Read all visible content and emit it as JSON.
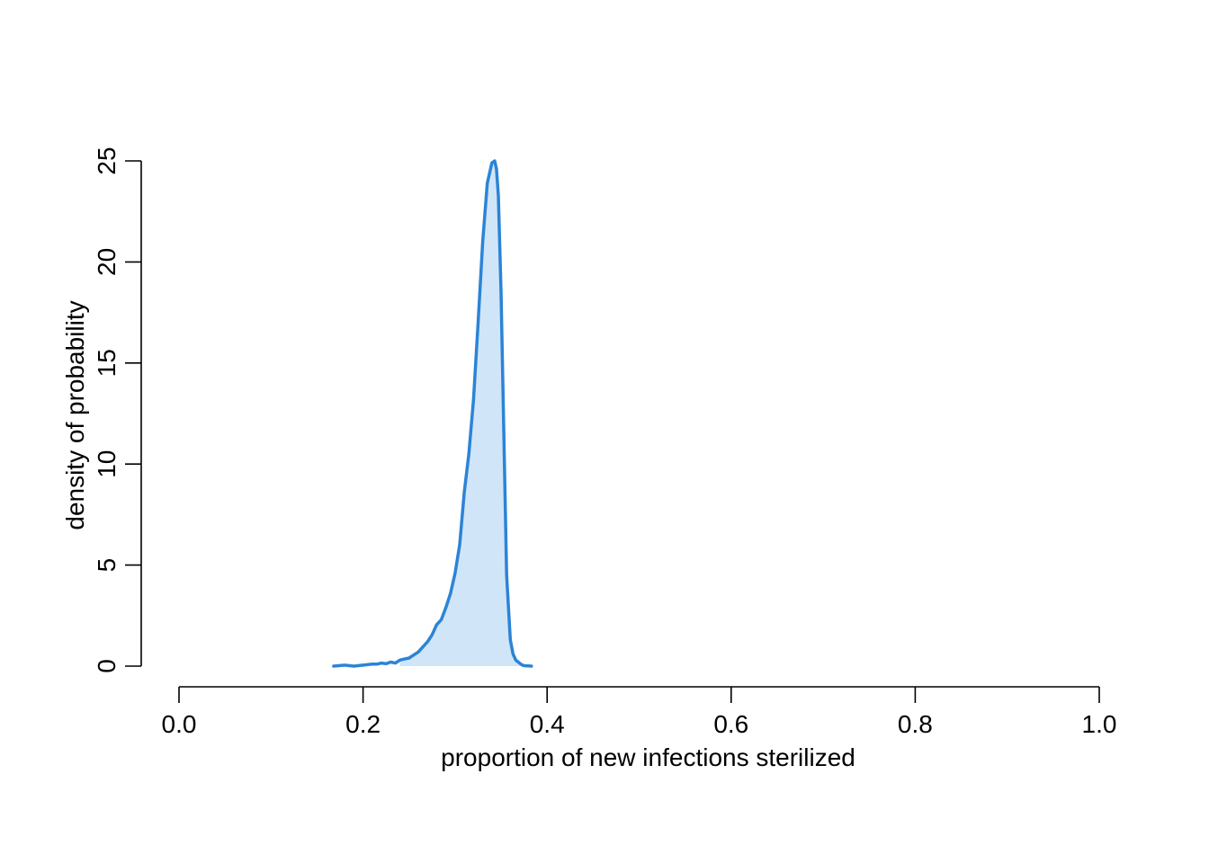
{
  "chart_data": {
    "type": "area",
    "title": "",
    "xlabel": "proportion of new infections sterilized",
    "ylabel": "density of probability",
    "xlim": [
      0,
      1
    ],
    "ylim": [
      0,
      25
    ],
    "x_ticks": [
      0.0,
      0.2,
      0.4,
      0.6,
      0.8,
      1.0
    ],
    "x_tick_labels": [
      "0.0",
      "0.2",
      "0.4",
      "0.6",
      "0.8",
      "1.0"
    ],
    "y_ticks": [
      0,
      5,
      10,
      15,
      20,
      25
    ],
    "y_tick_labels": [
      "0",
      "5",
      "10",
      "15",
      "20",
      "25"
    ],
    "grid": false,
    "line_color": "#2b84d6",
    "fill_color": "#d1e5f8",
    "fill_start_x": 0.24,
    "series": [
      {
        "x": [
          0.168,
          0.18,
          0.19,
          0.2,
          0.21,
          0.215,
          0.22,
          0.225,
          0.23,
          0.235,
          0.24,
          0.245,
          0.25,
          0.255,
          0.26,
          0.265,
          0.27,
          0.275,
          0.28,
          0.285,
          0.29,
          0.295,
          0.3,
          0.305,
          0.31,
          0.315,
          0.32,
          0.325,
          0.33,
          0.335,
          0.34,
          0.343,
          0.345,
          0.347,
          0.35,
          0.353,
          0.356,
          0.36,
          0.363,
          0.366,
          0.37,
          0.373,
          0.376,
          0.38,
          0.383
        ],
        "y": [
          0.0,
          0.05,
          0.0,
          0.05,
          0.1,
          0.1,
          0.15,
          0.12,
          0.2,
          0.15,
          0.3,
          0.35,
          0.4,
          0.55,
          0.7,
          0.95,
          1.2,
          1.55,
          2.05,
          2.3,
          2.9,
          3.6,
          4.6,
          6.0,
          8.6,
          10.5,
          13.2,
          17.0,
          21.0,
          23.9,
          24.9,
          25.0,
          24.6,
          23.3,
          18.5,
          11.5,
          4.5,
          1.3,
          0.6,
          0.3,
          0.15,
          0.05,
          0.02,
          0.01,
          0.0
        ]
      }
    ]
  }
}
